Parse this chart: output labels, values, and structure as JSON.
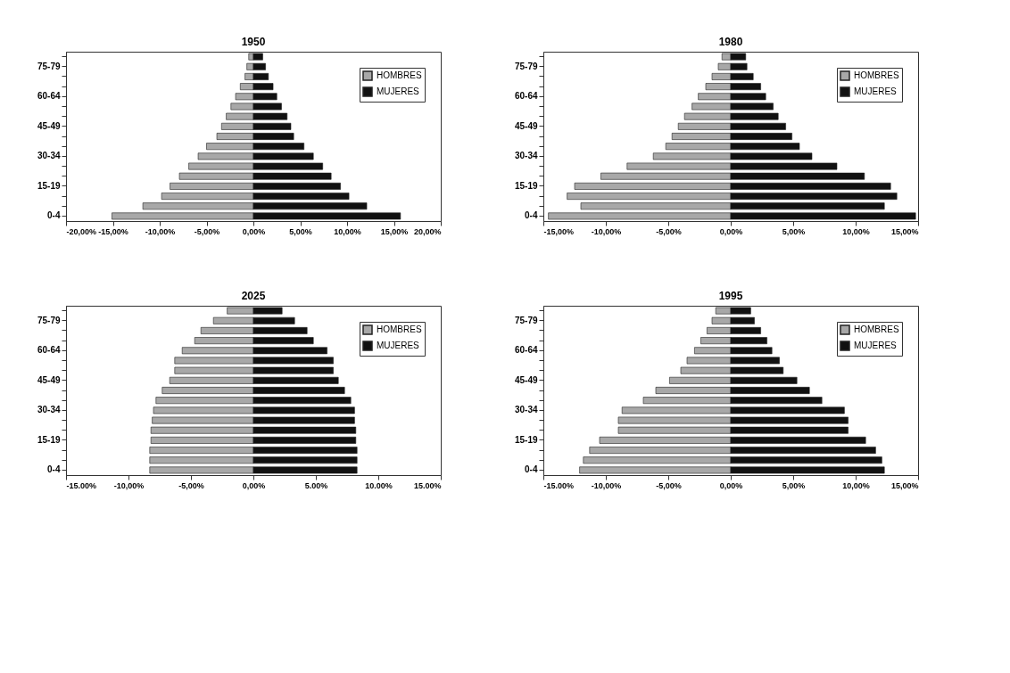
{
  "chart_data": [
    {
      "type": "bar",
      "orientation": "horizontal",
      "stacked": true,
      "title": "1950",
      "legend": "top right",
      "grid": false,
      "categories": [
        null,
        "75-79",
        null,
        null,
        "60-64",
        null,
        null,
        "45-49",
        null,
        null,
        "30-34",
        null,
        null,
        "15-19",
        null,
        null,
        "0-4"
      ],
      "xlim": [
        -20,
        20
      ],
      "xticks": [
        {
          "value": -20,
          "label": "-20,00%"
        },
        {
          "value": -15,
          "label": "-15,00%"
        },
        {
          "value": -10,
          "label": "-10,00%"
        },
        {
          "value": -5,
          "label": "-5,00%"
        },
        {
          "value": 0,
          "label": "0,00%"
        },
        {
          "value": 5,
          "label": "5,00%"
        },
        {
          "value": 10,
          "label": "10,00%"
        },
        {
          "value": 15,
          "label": "15,00%"
        },
        {
          "value": 20,
          "label": "20,00%"
        }
      ],
      "series": [
        {
          "name": "HOMBRES",
          "color": "#a8a8a8",
          "values": [
            -0.5,
            -0.7,
            -0.9,
            -1.4,
            -1.9,
            -2.4,
            -2.9,
            -3.4,
            -3.9,
            -5.0,
            -5.9,
            -6.9,
            -7.9,
            -8.9,
            -9.8,
            -11.8,
            -15.1
          ]
        },
        {
          "name": "MUJERES",
          "color": "#111111",
          "values": [
            1.0,
            1.3,
            1.6,
            2.1,
            2.5,
            3.0,
            3.6,
            4.0,
            4.3,
            5.4,
            6.4,
            7.4,
            8.3,
            9.3,
            10.2,
            12.1,
            15.7
          ]
        }
      ]
    },
    {
      "type": "bar",
      "orientation": "horizontal",
      "stacked": true,
      "title": "1980",
      "legend": "top right",
      "grid": false,
      "categories": [
        null,
        "75-79",
        null,
        null,
        "60-64",
        null,
        null,
        "45-49",
        null,
        null,
        "30-34",
        null,
        null,
        "15-19",
        null,
        null,
        "0-4"
      ],
      "xlim": [
        -15,
        15
      ],
      "xticks": [
        {
          "value": -15,
          "label": "-15,00%"
        },
        {
          "value": -10,
          "label": "-10,00%"
        },
        {
          "value": -5,
          "label": "-5,00%"
        },
        {
          "value": 0,
          "label": "0,00%"
        },
        {
          "value": 5,
          "label": "5,00%"
        },
        {
          "value": 10,
          "label": "10,00%"
        },
        {
          "value": 15,
          "label": "15,00%"
        }
      ],
      "series": [
        {
          "name": "HOMBRES",
          "color": "#a8a8a8",
          "values": [
            -0.7,
            -1.0,
            -1.5,
            -2.0,
            -2.6,
            -3.1,
            -3.7,
            -4.2,
            -4.7,
            -5.2,
            -6.2,
            -8.3,
            -10.4,
            -12.5,
            -13.1,
            -12.0,
            -14.6
          ]
        },
        {
          "name": "MUJERES",
          "color": "#111111",
          "values": [
            1.2,
            1.3,
            1.8,
            2.4,
            2.8,
            3.4,
            3.8,
            4.4,
            4.9,
            5.5,
            6.5,
            8.5,
            10.7,
            12.8,
            13.3,
            12.3,
            14.8
          ]
        }
      ]
    },
    {
      "type": "bar",
      "orientation": "horizontal",
      "stacked": true,
      "title": "2025",
      "legend": "top right",
      "grid": false,
      "categories": [
        null,
        "75-79",
        null,
        null,
        "60-64",
        null,
        null,
        "45-49",
        null,
        null,
        "30-34",
        null,
        null,
        "15-19",
        null,
        null,
        "0-4"
      ],
      "xlim": [
        -15,
        15
      ],
      "xticks": [
        {
          "value": -15,
          "label": "-15.00%"
        },
        {
          "value": -10,
          "label": "-10,00%"
        },
        {
          "value": -5,
          "label": "-5,00%"
        },
        {
          "value": 0,
          "label": "0,00%"
        },
        {
          "value": 5,
          "label": "5.00%"
        },
        {
          "value": 10,
          "label": "10.00%"
        },
        {
          "value": 15,
          "label": "15.00%"
        }
      ],
      "series": [
        {
          "name": "HOMBRES",
          "color": "#a8a8a8",
          "values": [
            -2.1,
            -3.2,
            -4.2,
            -4.7,
            -5.7,
            -6.3,
            -6.3,
            -6.7,
            -7.3,
            -7.8,
            -8.0,
            -8.1,
            -8.2,
            -8.2,
            -8.3,
            -8.3,
            -8.3
          ]
        },
        {
          "name": "MUJERES",
          "color": "#111111",
          "values": [
            2.3,
            3.3,
            4.3,
            4.8,
            5.9,
            6.4,
            6.4,
            6.8,
            7.3,
            7.8,
            8.1,
            8.1,
            8.2,
            8.2,
            8.3,
            8.3,
            8.3
          ]
        }
      ]
    },
    {
      "type": "bar",
      "orientation": "horizontal",
      "stacked": true,
      "title": "1995",
      "legend": "top right",
      "grid": false,
      "categories": [
        null,
        "75-79",
        null,
        null,
        "60-64",
        null,
        null,
        "45-49",
        null,
        null,
        "30-34",
        null,
        null,
        "15-19",
        null,
        null,
        "0-4"
      ],
      "xlim": [
        -15,
        15
      ],
      "xticks": [
        {
          "value": -15,
          "label": "-15.00%"
        },
        {
          "value": -10,
          "label": "-10,00%"
        },
        {
          "value": -5,
          "label": "-5,00%"
        },
        {
          "value": 0,
          "label": "0,00%"
        },
        {
          "value": 5,
          "label": "5,00%"
        },
        {
          "value": 10,
          "label": "10,00%"
        },
        {
          "value": 15,
          "label": "15,00%"
        }
      ],
      "series": [
        {
          "name": "HOMBRES",
          "color": "#a8a8a8",
          "values": [
            -1.2,
            -1.5,
            -1.9,
            -2.4,
            -2.9,
            -3.5,
            -4.0,
            -4.9,
            -6.0,
            -7.0,
            -8.7,
            -9.0,
            -9.0,
            -10.5,
            -11.3,
            -11.8,
            -12.1
          ]
        },
        {
          "name": "MUJERES",
          "color": "#111111",
          "values": [
            1.6,
            1.9,
            2.4,
            2.9,
            3.3,
            3.9,
            4.2,
            5.3,
            6.3,
            7.3,
            9.1,
            9.4,
            9.4,
            10.8,
            11.6,
            12.1,
            12.3
          ]
        }
      ]
    }
  ]
}
